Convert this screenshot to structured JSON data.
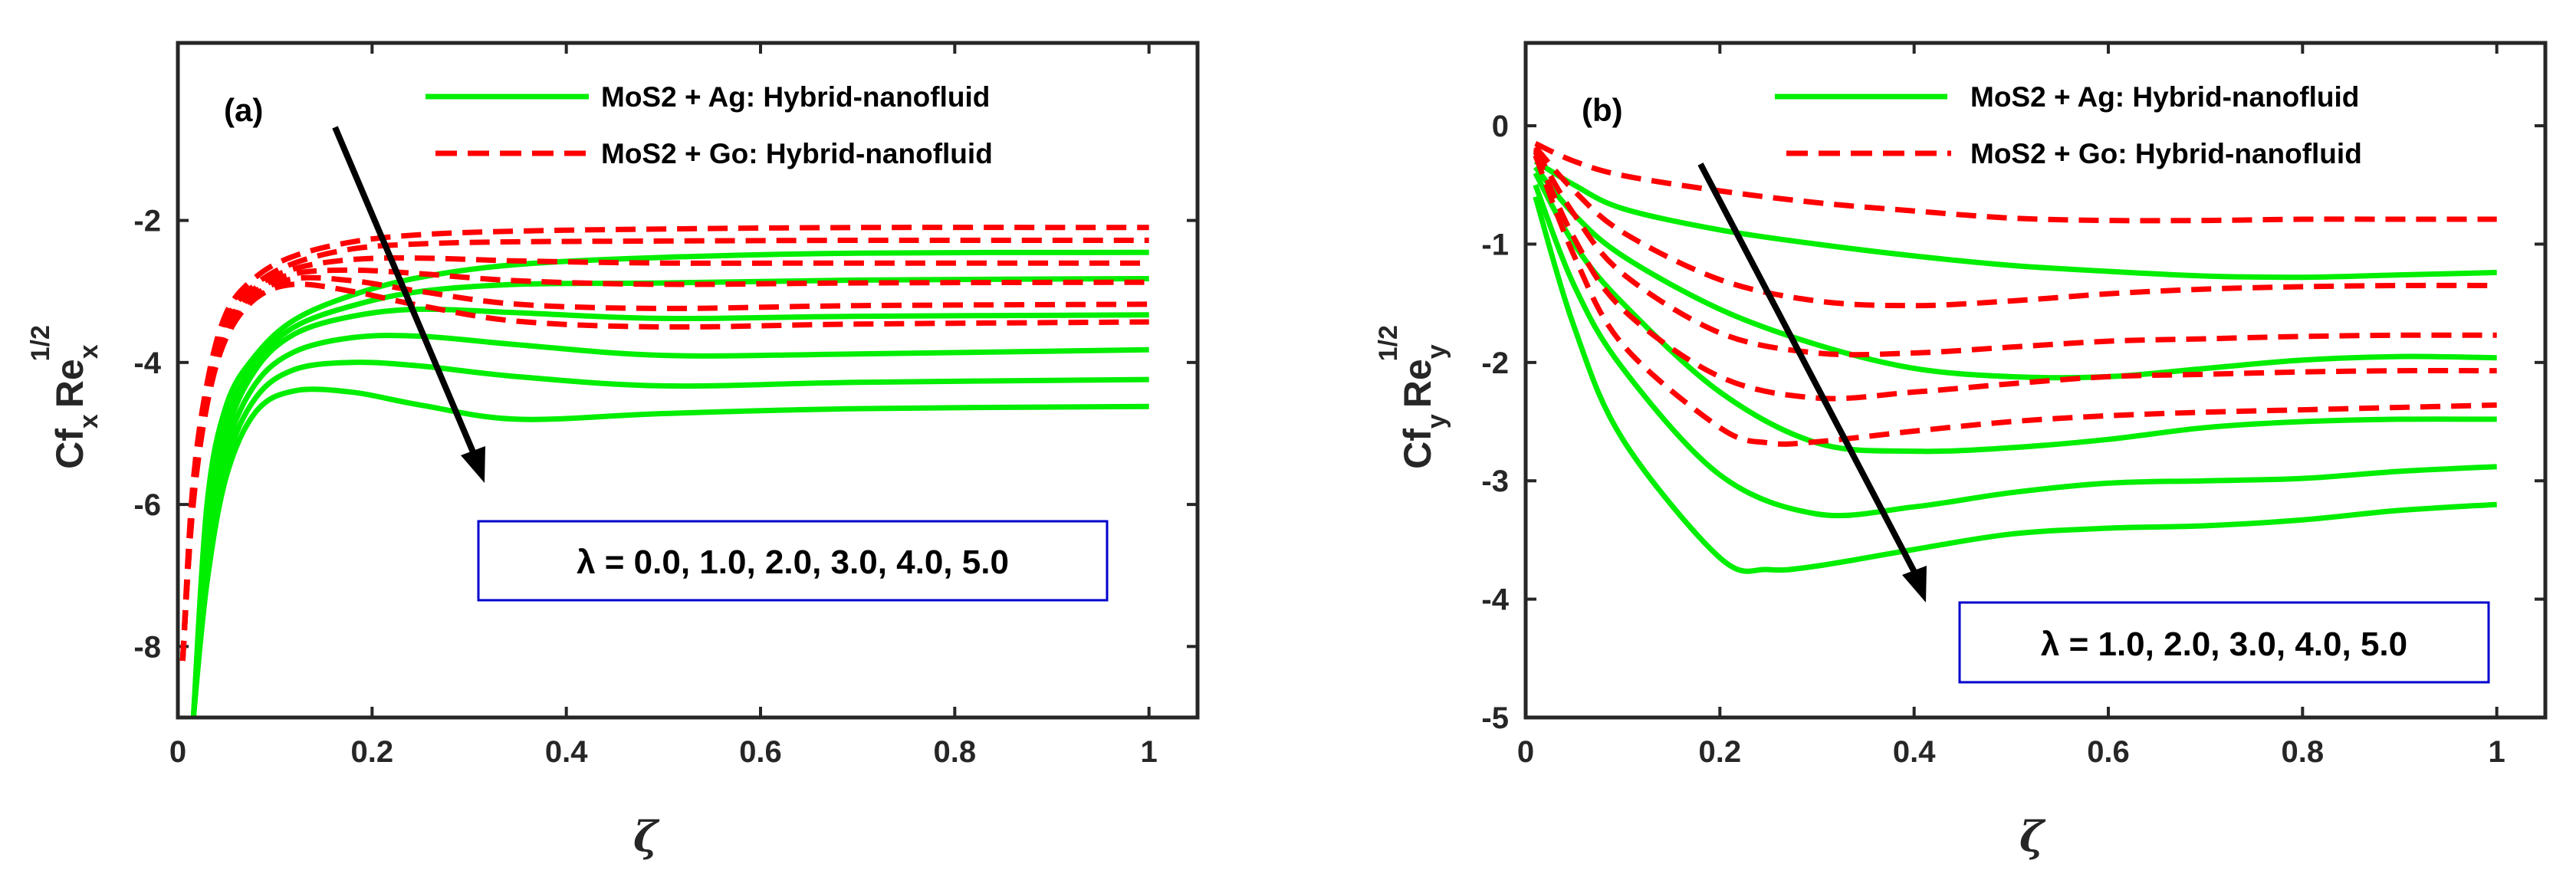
{
  "figure": {
    "xlabel": "ζ",
    "legend": {
      "ag": "MoS2 + Ag: Hybrid-nanofluid",
      "go": "MoS2 + Go: Hybrid-nanofluid"
    },
    "colors": {
      "ag": "#00ee00",
      "go": "#ff0000",
      "arrow": "#000000",
      "box": "#0000cc"
    }
  },
  "chart_data": [
    {
      "type": "line",
      "panel_label": "(a)",
      "ylabel": {
        "base": "Cf",
        "sub": "x",
        "re": "Re",
        "re_sub": "x",
        "exp": "1/2"
      },
      "xlabel": "ζ",
      "xlim": [
        0,
        1.05
      ],
      "ylim": [
        -9,
        0.5
      ],
      "xticks": [
        0,
        0.2,
        0.4,
        0.6,
        0.8,
        1
      ],
      "xticklabels": [
        "0",
        "0.2",
        "0.4",
        "0.6",
        "0.8",
        "1"
      ],
      "yticks": [
        -8,
        -6,
        -4,
        -2
      ],
      "yticklabels": [
        "-8",
        "-6",
        "-4",
        "-2"
      ],
      "annotation": "λ = 0.0, 1.0, 2.0, 3.0, 4.0, 5.0",
      "arrow": {
        "from": [
          0.16,
          -1.4
        ],
        "to": [
          0.32,
          -6.0
        ]
      },
      "series": [
        {
          "name": "MoS2 + Ag λ=0.0",
          "group": "ag",
          "x": [
            0.016,
            0.03,
            0.05,
            0.08,
            0.12,
            0.18,
            0.25,
            0.35,
            0.5,
            0.7,
            1.0
          ],
          "y": [
            -9.0,
            -6.0,
            -4.6,
            -3.9,
            -3.4,
            -3.05,
            -2.8,
            -2.62,
            -2.52,
            -2.46,
            -2.45
          ]
        },
        {
          "name": "MoS2 + Ag λ=1.0",
          "group": "ag",
          "x": [
            0.016,
            0.03,
            0.05,
            0.08,
            0.12,
            0.18,
            0.25,
            0.35,
            0.5,
            0.7,
            1.0
          ],
          "y": [
            -9.0,
            -6.2,
            -4.8,
            -4.0,
            -3.5,
            -3.2,
            -3.0,
            -2.9,
            -2.88,
            -2.84,
            -2.82
          ]
        },
        {
          "name": "MoS2 + Ag λ=2.0",
          "group": "ag",
          "x": [
            0.016,
            0.03,
            0.05,
            0.08,
            0.12,
            0.18,
            0.25,
            0.35,
            0.5,
            0.7,
            1.0
          ],
          "y": [
            -9.0,
            -6.5,
            -5.0,
            -4.1,
            -3.6,
            -3.35,
            -3.25,
            -3.3,
            -3.38,
            -3.35,
            -3.33
          ]
        },
        {
          "name": "MoS2 + Ag λ=3.0",
          "group": "ag",
          "x": [
            0.016,
            0.03,
            0.05,
            0.08,
            0.12,
            0.18,
            0.25,
            0.35,
            0.5,
            0.7,
            1.0
          ],
          "y": [
            -9.0,
            -6.7,
            -5.2,
            -4.3,
            -3.85,
            -3.65,
            -3.63,
            -3.75,
            -3.9,
            -3.88,
            -3.82
          ]
        },
        {
          "name": "MoS2 + Ag λ=4.0",
          "group": "ag",
          "x": [
            0.016,
            0.03,
            0.05,
            0.08,
            0.12,
            0.18,
            0.25,
            0.35,
            0.5,
            0.7,
            1.0
          ],
          "y": [
            -9.0,
            -6.9,
            -5.4,
            -4.5,
            -4.1,
            -4.0,
            -4.05,
            -4.2,
            -4.33,
            -4.28,
            -4.24
          ]
        },
        {
          "name": "MoS2 + Ag λ=5.0",
          "group": "ag",
          "x": [
            0.016,
            0.03,
            0.05,
            0.08,
            0.12,
            0.18,
            0.25,
            0.35,
            0.5,
            0.7,
            1.0
          ],
          "y": [
            -9.0,
            -7.1,
            -5.6,
            -4.7,
            -4.4,
            -4.42,
            -4.6,
            -4.8,
            -4.72,
            -4.65,
            -4.62
          ]
        },
        {
          "name": "MoS2 + Go λ=0.0",
          "group": "go",
          "x": [
            0.005,
            0.015,
            0.03,
            0.05,
            0.08,
            0.12,
            0.18,
            0.25,
            0.35,
            0.5,
            0.7,
            1.0
          ],
          "y": [
            -8.2,
            -5.8,
            -4.3,
            -3.3,
            -2.8,
            -2.5,
            -2.3,
            -2.2,
            -2.15,
            -2.12,
            -2.1,
            -2.1
          ]
        },
        {
          "name": "MoS2 + Go λ=1.0",
          "group": "go",
          "x": [
            0.005,
            0.015,
            0.03,
            0.05,
            0.08,
            0.12,
            0.18,
            0.25,
            0.35,
            0.5,
            0.7,
            1.0
          ],
          "y": [
            -8.2,
            -5.9,
            -4.4,
            -3.4,
            -2.9,
            -2.6,
            -2.4,
            -2.33,
            -2.3,
            -2.29,
            -2.28,
            -2.28
          ]
        },
        {
          "name": "MoS2 + Go λ=2.0",
          "group": "go",
          "x": [
            0.005,
            0.015,
            0.03,
            0.05,
            0.08,
            0.12,
            0.18,
            0.25,
            0.35,
            0.5,
            0.7,
            1.0
          ],
          "y": [
            -8.2,
            -6.0,
            -4.5,
            -3.5,
            -2.95,
            -2.68,
            -2.55,
            -2.53,
            -2.57,
            -2.6,
            -2.6,
            -2.6
          ]
        },
        {
          "name": "MoS2 + Go λ=3.0",
          "group": "go",
          "x": [
            0.005,
            0.015,
            0.03,
            0.05,
            0.08,
            0.12,
            0.18,
            0.25,
            0.35,
            0.5,
            0.7,
            1.0
          ],
          "y": [
            -8.2,
            -6.0,
            -4.5,
            -3.55,
            -3.0,
            -2.75,
            -2.7,
            -2.75,
            -2.85,
            -2.9,
            -2.88,
            -2.87
          ]
        },
        {
          "name": "MoS2 + Go λ=4.0",
          "group": "go",
          "x": [
            0.005,
            0.015,
            0.03,
            0.05,
            0.08,
            0.12,
            0.18,
            0.25,
            0.35,
            0.5,
            0.7,
            1.0
          ],
          "y": [
            -8.2,
            -6.1,
            -4.6,
            -3.6,
            -3.05,
            -2.82,
            -2.85,
            -3.0,
            -3.18,
            -3.24,
            -3.2,
            -3.18
          ]
        },
        {
          "name": "MoS2 + Go λ=5.0",
          "group": "go",
          "x": [
            0.005,
            0.015,
            0.03,
            0.05,
            0.08,
            0.12,
            0.18,
            0.25,
            0.35,
            0.5,
            0.7,
            1.0
          ],
          "y": [
            -8.2,
            -6.1,
            -4.6,
            -3.65,
            -3.1,
            -2.9,
            -3.0,
            -3.2,
            -3.42,
            -3.5,
            -3.46,
            -3.43
          ]
        }
      ]
    },
    {
      "type": "line",
      "panel_label": "(b)",
      "ylabel": {
        "base": "Cf",
        "sub": "y",
        "re": "Re",
        "re_sub": "y",
        "exp": "1/2"
      },
      "xlabel": "ζ",
      "xlim": [
        0,
        1.05
      ],
      "ylim": [
        -5,
        0.7
      ],
      "xticks": [
        0,
        0.2,
        0.4,
        0.6,
        0.8,
        1
      ],
      "xticklabels": [
        "0",
        "0.2",
        "0.4",
        "0.6",
        "0.8",
        "1"
      ],
      "yticks": [
        -5,
        -4,
        -3,
        -2,
        -1,
        0
      ],
      "yticklabels": [
        "-5",
        "-4",
        "-3",
        "-2",
        "-1",
        "0"
      ],
      "annotation": "λ = 1.0, 2.0, 3.0, 4.0, 5.0",
      "arrow": {
        "from": [
          0.18,
          -0.3
        ],
        "to": [
          0.41,
          -4.0
        ]
      },
      "series": [
        {
          "name": "MoS2 + Ag λ=1.0",
          "group": "ag",
          "x": [
            0.01,
            0.05,
            0.1,
            0.2,
            0.3,
            0.4,
            0.5,
            0.6,
            0.7,
            0.8,
            0.9,
            1.0
          ],
          "y": [
            -0.3,
            -0.5,
            -0.7,
            -0.88,
            -1.0,
            -1.1,
            -1.18,
            -1.23,
            -1.27,
            -1.28,
            -1.26,
            -1.24
          ]
        },
        {
          "name": "MoS2 + Ag λ=2.0",
          "group": "ag",
          "x": [
            0.01,
            0.05,
            0.1,
            0.2,
            0.3,
            0.4,
            0.5,
            0.6,
            0.7,
            0.8,
            0.9,
            1.0
          ],
          "y": [
            -0.35,
            -0.75,
            -1.1,
            -1.55,
            -1.85,
            -2.05,
            -2.12,
            -2.12,
            -2.05,
            -1.98,
            -1.95,
            -1.96
          ]
        },
        {
          "name": "MoS2 + Ag λ=3.0",
          "group": "ag",
          "x": [
            0.01,
            0.05,
            0.1,
            0.2,
            0.3,
            0.4,
            0.5,
            0.6,
            0.7,
            0.8,
            0.9,
            1.0
          ],
          "y": [
            -0.4,
            -1.0,
            -1.5,
            -2.25,
            -2.68,
            -2.75,
            -2.72,
            -2.65,
            -2.55,
            -2.5,
            -2.48,
            -2.48
          ]
        },
        {
          "name": "MoS2 + Ag λ=4.0",
          "group": "ag",
          "x": [
            0.01,
            0.05,
            0.1,
            0.2,
            0.3,
            0.4,
            0.5,
            0.6,
            0.7,
            0.8,
            0.9,
            1.0
          ],
          "y": [
            -0.5,
            -1.35,
            -2.05,
            -2.95,
            -3.28,
            -3.22,
            -3.1,
            -3.02,
            -3.0,
            -2.98,
            -2.92,
            -2.88
          ]
        },
        {
          "name": "MoS2 + Ag λ=5.0",
          "group": "ag",
          "x": [
            0.01,
            0.05,
            0.1,
            0.2,
            0.25,
            0.3,
            0.4,
            0.5,
            0.6,
            0.7,
            0.8,
            0.9,
            1.0
          ],
          "y": [
            -0.6,
            -1.7,
            -2.65,
            -3.65,
            -3.75,
            -3.72,
            -3.58,
            -3.45,
            -3.4,
            -3.38,
            -3.33,
            -3.25,
            -3.2
          ]
        },
        {
          "name": "MoS2 + Go λ=1.0",
          "group": "go",
          "x": [
            0.01,
            0.05,
            0.1,
            0.2,
            0.3,
            0.4,
            0.5,
            0.6,
            0.7,
            0.8,
            0.9,
            1.0
          ],
          "y": [
            -0.15,
            -0.3,
            -0.42,
            -0.55,
            -0.65,
            -0.72,
            -0.78,
            -0.8,
            -0.8,
            -0.79,
            -0.79,
            -0.79
          ]
        },
        {
          "name": "MoS2 + Go λ=2.0",
          "group": "go",
          "x": [
            0.01,
            0.05,
            0.1,
            0.2,
            0.3,
            0.4,
            0.5,
            0.6,
            0.7,
            0.8,
            0.9,
            1.0
          ],
          "y": [
            -0.18,
            -0.55,
            -0.9,
            -1.3,
            -1.48,
            -1.52,
            -1.48,
            -1.42,
            -1.38,
            -1.36,
            -1.35,
            -1.35
          ]
        },
        {
          "name": "MoS2 + Go λ=3.0",
          "group": "go",
          "x": [
            0.01,
            0.05,
            0.1,
            0.2,
            0.3,
            0.4,
            0.5,
            0.6,
            0.7,
            0.8,
            0.9,
            1.0
          ],
          "y": [
            -0.2,
            -0.75,
            -1.25,
            -1.75,
            -1.92,
            -1.92,
            -1.87,
            -1.82,
            -1.8,
            -1.78,
            -1.77,
            -1.77
          ]
        },
        {
          "name": "MoS2 + Go λ=4.0",
          "group": "go",
          "x": [
            0.01,
            0.05,
            0.1,
            0.2,
            0.3,
            0.4,
            0.5,
            0.6,
            0.7,
            0.8,
            0.9,
            1.0
          ],
          "y": [
            -0.22,
            -0.95,
            -1.55,
            -2.12,
            -2.3,
            -2.25,
            -2.18,
            -2.12,
            -2.1,
            -2.08,
            -2.07,
            -2.07
          ]
        },
        {
          "name": "MoS2 + Go λ=5.0",
          "group": "go",
          "x": [
            0.01,
            0.05,
            0.1,
            0.2,
            0.25,
            0.3,
            0.4,
            0.5,
            0.6,
            0.7,
            0.8,
            0.9,
            1.0
          ],
          "y": [
            -0.25,
            -1.1,
            -1.85,
            -2.55,
            -2.68,
            -2.67,
            -2.58,
            -2.5,
            -2.45,
            -2.42,
            -2.4,
            -2.38,
            -2.36
          ]
        }
      ]
    }
  ]
}
